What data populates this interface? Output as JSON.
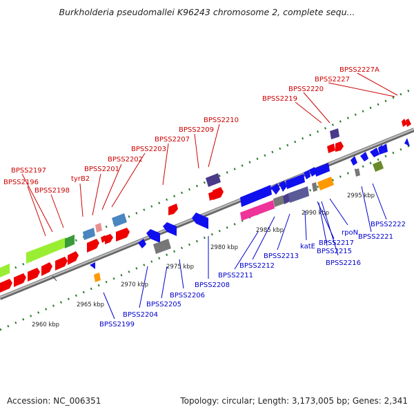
{
  "title": "Burkholderia pseudomallei K96243 chromosome 2, complete sequ...",
  "footer": {
    "accession": "Accession: NC_006351",
    "summary": "Topology: circular; Length: 3,173,005 bp; Genes: 2,341"
  },
  "colors": {
    "label_top": "#cc0000",
    "label_bottom": "#0000cc",
    "backbone": "#999999",
    "tick": "#2a7a2a"
  },
  "ticks": [
    "2960 kbp",
    "2965 kbp",
    "2970 kbp",
    "2975 kbp",
    "2980 kbp",
    "2985 kbp",
    "2990 kbp",
    "2995 kbp"
  ],
  "labels_top": [
    "BPSS2197",
    "BPSS2196",
    "BPSS2198",
    "tyrB2",
    "BPSS2201",
    "BPSS2202",
    "BPSS2203",
    "BPSS2207",
    "BPSS2209",
    "BPSS2210",
    "BPSS2219",
    "BPSS2220",
    "BPSS2227",
    "BPSS2227A"
  ],
  "labels_bottom": [
    "BPSS2199",
    "BPSS2204",
    "BPSS2205",
    "BPSS2206",
    "BPSS2208",
    "BPSS2211",
    "BPSS2212",
    "BPSS2213",
    "katE",
    "BPSS2217",
    "BPSS2215",
    "BPSS2216",
    "rpoN",
    "BPSS2221",
    "BPSS2222"
  ],
  "feature_colors": {
    "forward": "#ee0000",
    "reverse": "#1010ee",
    "lime": "#99ee33",
    "steel": "#4a86c0",
    "pink": "#e89090",
    "slate": "#5a5a99",
    "magenta": "#ee3399",
    "gray": "#777777",
    "orange": "#ff9900",
    "olive": "#6a8a2a",
    "dark_slate": "#4a3a8a"
  }
}
